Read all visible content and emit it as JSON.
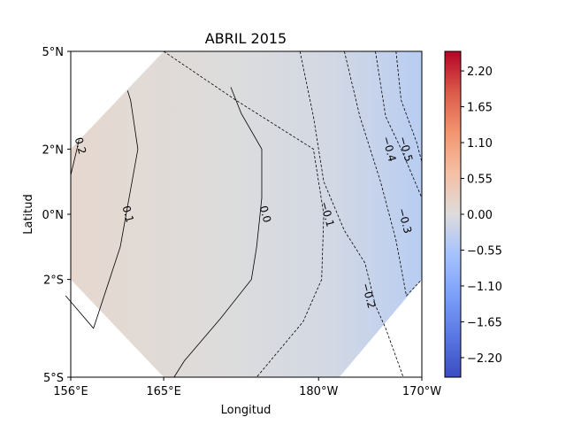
{
  "chart_data": {
    "type": "heatmap",
    "title": "ABRIL 2015",
    "xlabel": "Longitud",
    "ylabel": "Latitud",
    "x_ticks": [
      {
        "lon": 156,
        "label": "156°E"
      },
      {
        "lon": 165,
        "label": "165°E"
      },
      {
        "lon": 180,
        "label": "180°W"
      },
      {
        "lon": 190,
        "label": "170°W"
      }
    ],
    "y_ticks": [
      {
        "lat": 5,
        "label": "5°N"
      },
      {
        "lat": 2,
        "label": "2°N"
      },
      {
        "lat": 0,
        "label": "0°N"
      },
      {
        "lat": -2,
        "label": "2°S"
      },
      {
        "lat": -5,
        "label": "5°S"
      }
    ],
    "xlim": [
      156,
      190
    ],
    "ylim": [
      -5,
      5
    ],
    "colorbar": {
      "colormap": "coolwarm",
      "range": [
        -2.5,
        2.5
      ],
      "ticks": [
        {
          "value": 2.2,
          "label": "2.20"
        },
        {
          "value": 1.65,
          "label": "1.65"
        },
        {
          "value": 1.1,
          "label": "1.10"
        },
        {
          "value": 0.55,
          "label": "0.55"
        },
        {
          "value": 0.0,
          "label": "0.00"
        },
        {
          "value": -0.55,
          "label": "−0.55"
        },
        {
          "value": -1.1,
          "label": "−1.10"
        },
        {
          "value": -1.65,
          "label": "−1.65"
        },
        {
          "value": -2.2,
          "label": "−2.20"
        }
      ]
    },
    "field_domain_polygon": [
      [
        165,
        5
      ],
      [
        190,
        5
      ],
      [
        190,
        -2
      ],
      [
        182,
        -5
      ],
      [
        165,
        -5
      ],
      [
        156,
        -2
      ],
      [
        156,
        2
      ]
    ],
    "field_gradient_values": {
      "west": 0.15,
      "mid": 0.0,
      "east": -0.55
    },
    "contours": [
      {
        "level": 0.2,
        "label": "0.2",
        "style": "solid",
        "points": [
          [
            156,
            1.2
          ],
          [
            156.6,
            2
          ],
          [
            156.8,
            2.3
          ]
        ],
        "label_at": [
          156.9,
          2.1
        ]
      },
      {
        "level": 0.1,
        "label": "0.1",
        "style": "solid",
        "points": [
          [
            161.5,
            3.8
          ],
          [
            161.8,
            3.5
          ],
          [
            162.5,
            2
          ],
          [
            160.8,
            -1
          ],
          [
            158.2,
            -3.5
          ],
          [
            155.5,
            -2.5
          ]
        ],
        "label_at": [
          161.5,
          0
        ]
      },
      {
        "level": 0.0,
        "label": "0.0",
        "style": "solid",
        "points": [
          [
            171.5,
            3.9
          ],
          [
            172.5,
            3.1
          ],
          [
            174.5,
            2
          ],
          [
            174.5,
            0.5
          ],
          [
            174,
            -1
          ],
          [
            173.5,
            -2
          ],
          [
            170.5,
            -3.2
          ],
          [
            167,
            -4.5
          ],
          [
            166,
            -5
          ]
        ],
        "label_at": [
          174.8,
          0
        ]
      },
      {
        "level": -0.1,
        "label": "−0.1",
        "style": "dashed",
        "points": [
          [
            165,
            5
          ],
          [
            172,
            3.5
          ],
          [
            179.5,
            2
          ],
          [
            180.5,
            0
          ],
          [
            180.3,
            -2
          ],
          [
            178.5,
            -3.3
          ],
          [
            174,
            -5
          ]
        ],
        "label_at": [
          180.8,
          0
        ]
      },
      {
        "level": -0.2,
        "label": "−0.2",
        "style": "dashed",
        "points": [
          [
            178.2,
            5
          ],
          [
            179.5,
            3
          ],
          [
            180.5,
            1
          ],
          [
            182.5,
            -0.5
          ],
          [
            184.5,
            -1.5
          ],
          [
            185.5,
            -2.8
          ],
          [
            186.5,
            -3.5
          ],
          [
            188.2,
            -5
          ]
        ],
        "label_at": [
          184.8,
          -2.5
        ]
      },
      {
        "level": -0.3,
        "label": "−0.3",
        "style": "dashed",
        "points": [
          [
            182.5,
            5
          ],
          [
            184,
            3
          ],
          [
            186,
            1
          ],
          [
            187.5,
            -0.8
          ],
          [
            188.5,
            -2.5
          ],
          [
            190,
            -2
          ]
        ],
        "label_at": [
          188.3,
          -0.2
        ]
      },
      {
        "level": -0.4,
        "label": "−0.4",
        "style": "dashed",
        "points": [
          [
            185.5,
            5
          ],
          [
            186.5,
            3
          ],
          [
            188,
            2
          ],
          [
            190,
            0.5
          ]
        ],
        "label_at": [
          186.8,
          2
        ]
      },
      {
        "level": -0.5,
        "label": "−0.5",
        "style": "dashed",
        "points": [
          [
            187.5,
            5
          ],
          [
            188,
            3.5
          ],
          [
            189.5,
            2.2
          ],
          [
            190,
            1.6
          ]
        ],
        "label_at": [
          188.4,
          2
        ]
      }
    ]
  }
}
